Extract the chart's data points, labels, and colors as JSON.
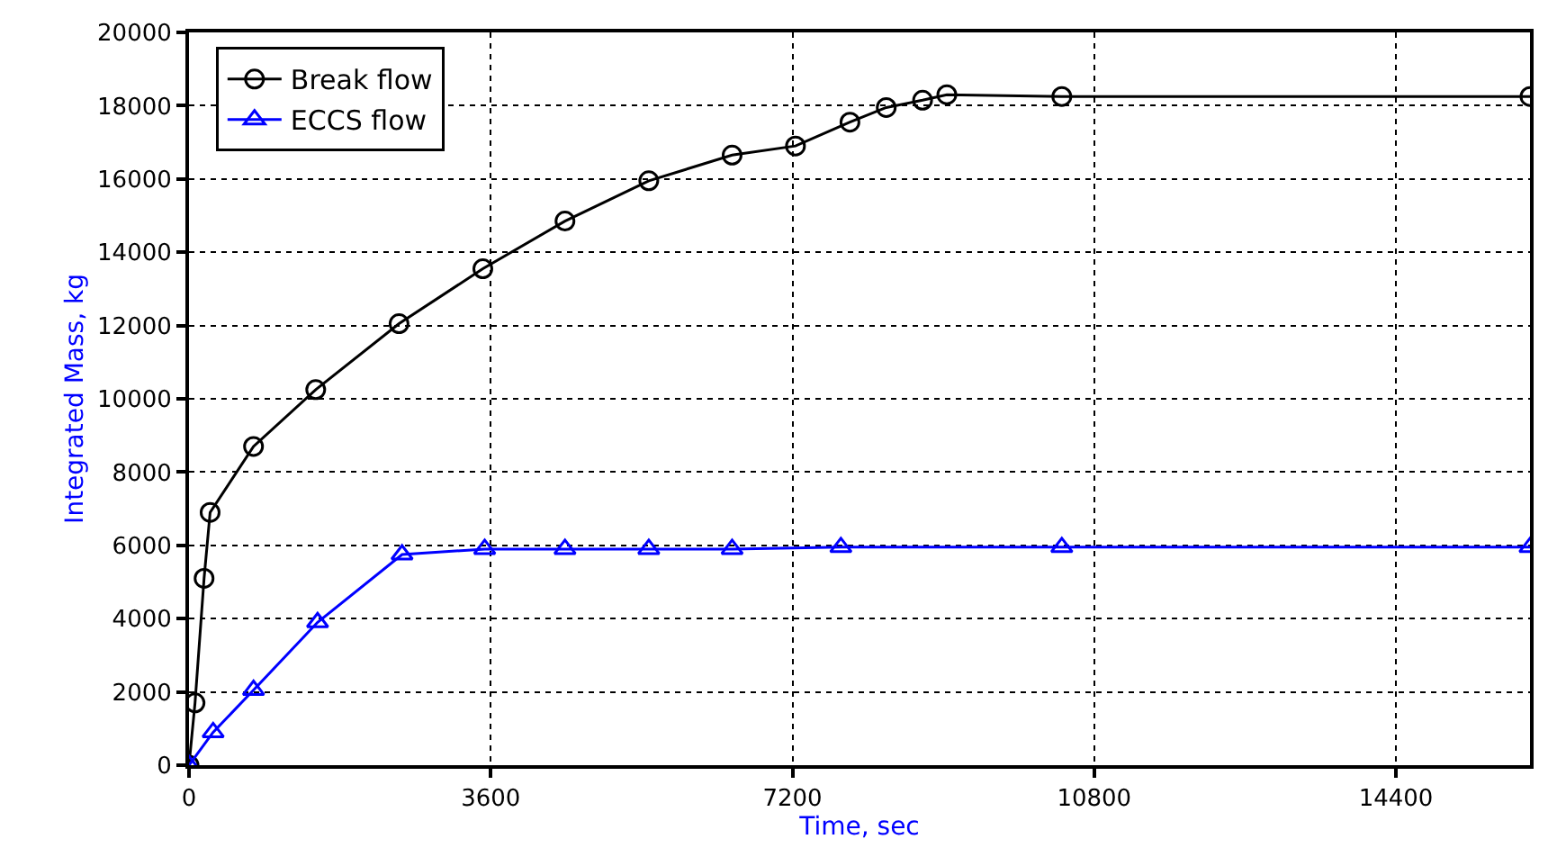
{
  "chart_data": {
    "type": "line",
    "xlabel": "Time, sec",
    "ylabel": "Integrated Mass, kg",
    "xlim": [
      0,
      16000
    ],
    "xticks": [
      0,
      3600,
      7200,
      10800,
      14400
    ],
    "ylim": [
      0,
      20000
    ],
    "yticks": [
      0,
      2000,
      4000,
      6000,
      8000,
      10000,
      12000,
      14000,
      16000,
      18000,
      20000
    ],
    "grid": true,
    "legend": "top left",
    "line_style": "solid",
    "series": [
      {
        "name": "Break flow",
        "color": "#000000",
        "marker": "circle",
        "x": [
          0,
          72,
          180,
          252,
          770,
          1512,
          2506,
          3506,
          4486,
          5486,
          6480,
          7236,
          7886,
          8319,
          8753,
          9042,
          10414,
          16000
        ],
        "values": [
          0,
          1700,
          5100,
          6900,
          8700,
          10250,
          12050,
          13550,
          14850,
          15950,
          16650,
          16900,
          17550,
          17950,
          18150,
          18300,
          18250,
          18250
        ]
      },
      {
        "name": "ECCS flow",
        "color": "#0000ff",
        "marker": "triangle",
        "x": [
          0,
          288,
          770,
          1534,
          2542,
          3528,
          4486,
          5486,
          6480,
          7778,
          10414,
          16000
        ],
        "values": [
          0,
          900,
          2050,
          3900,
          5750,
          5900,
          5900,
          5900,
          5900,
          5950,
          5950,
          5950
        ]
      }
    ]
  }
}
